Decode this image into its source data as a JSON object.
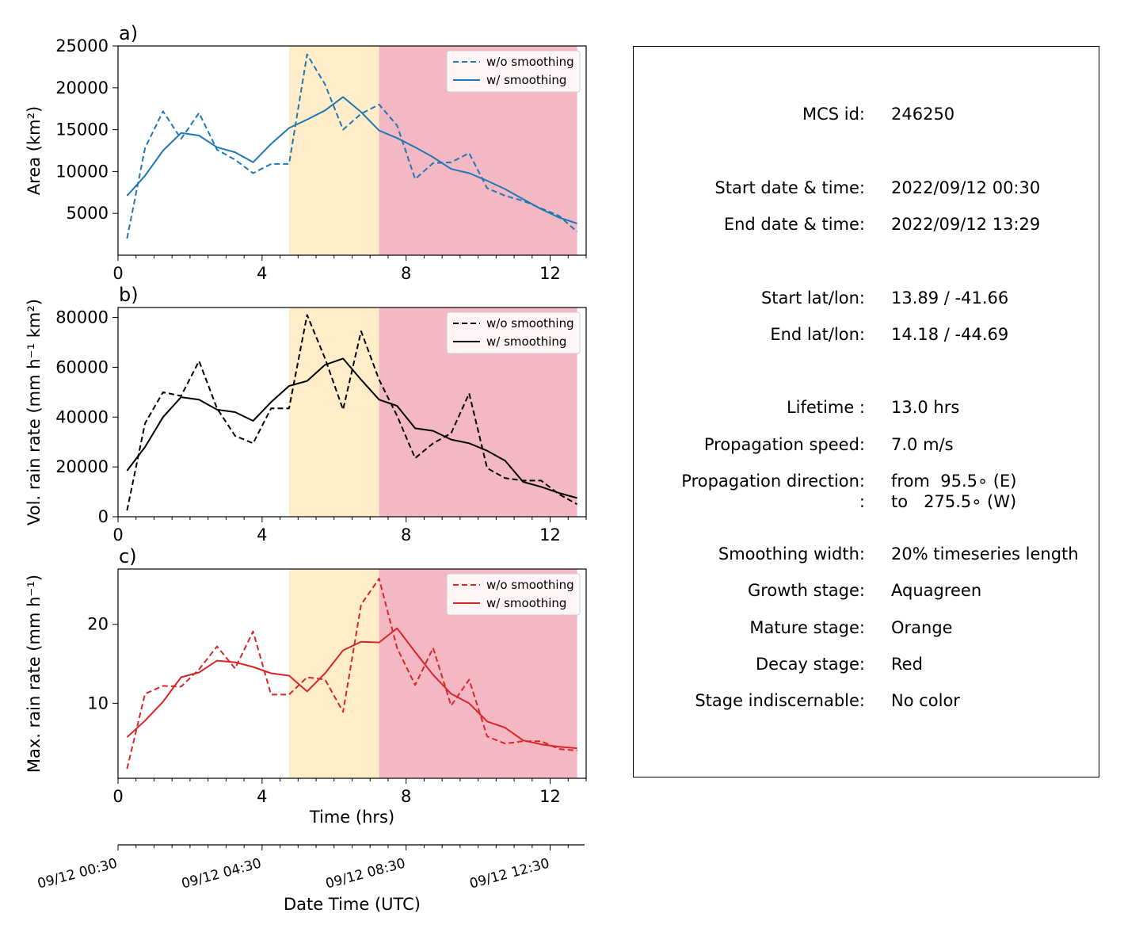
{
  "chart_data": [
    {
      "type": "line",
      "panel_label": "a)",
      "ylabel": "Area  (km²)",
      "xlim": [
        0,
        13
      ],
      "ylim": [
        0,
        25000
      ],
      "yticks": [
        5000,
        10000,
        15000,
        20000,
        25000
      ],
      "ytick_labels": [
        "5000",
        "10000",
        "15000",
        "20000",
        "25000"
      ],
      "xticks": [
        0,
        4,
        8,
        12
      ],
      "xtick_labels": [
        "0",
        "4",
        "8",
        "12"
      ],
      "color": "#1f77b4",
      "legend_position": "upper right",
      "x": [
        0.25,
        0.75,
        1.25,
        1.75,
        2.25,
        2.75,
        3.25,
        3.75,
        4.25,
        4.75,
        5.25,
        5.75,
        6.25,
        6.75,
        7.25,
        7.75,
        8.25,
        8.75,
        9.25,
        9.75,
        10.25,
        10.75,
        11.25,
        11.75,
        12.25,
        12.75
      ],
      "series": [
        {
          "name": "w/o smoothing",
          "style": "dashed",
          "values": [
            2000,
            12800,
            17200,
            13900,
            17000,
            12600,
            11400,
            9800,
            10900,
            10900,
            24000,
            20400,
            15000,
            16900,
            18000,
            15500,
            9100,
            11000,
            11100,
            12200,
            8000,
            7100,
            6500,
            5600,
            4700,
            2800
          ]
        },
        {
          "name": "w/ smoothing",
          "style": "solid",
          "values": [
            7100,
            9500,
            12500,
            14600,
            14300,
            12900,
            12300,
            11100,
            13300,
            15200,
            16200,
            17300,
            18900,
            17100,
            14900,
            14000,
            12900,
            11700,
            10300,
            9800,
            8900,
            7900,
            6700,
            5500,
            4500,
            3800
          ]
        }
      ]
    },
    {
      "type": "line",
      "panel_label": "b)",
      "ylabel": "Vol. rain rate (mm h⁻¹ km²)",
      "xlim": [
        0,
        13
      ],
      "ylim": [
        0,
        84000
      ],
      "yticks": [
        0,
        20000,
        40000,
        60000,
        80000
      ],
      "ytick_labels": [
        "0",
        "20000",
        "40000",
        "60000",
        "80000"
      ],
      "xticks": [
        0,
        4,
        8,
        12
      ],
      "xtick_labels": [
        "0",
        "4",
        "8",
        "12"
      ],
      "color": "#000000",
      "legend_position": "upper right",
      "x": [
        0.25,
        0.75,
        1.25,
        1.75,
        2.25,
        2.75,
        3.25,
        3.75,
        4.25,
        4.75,
        5.25,
        5.75,
        6.25,
        6.75,
        7.25,
        7.75,
        8.25,
        8.75,
        9.25,
        9.75,
        10.25,
        10.75,
        11.25,
        11.75,
        12.25,
        12.75
      ],
      "series": [
        {
          "name": "w/o smoothing",
          "style": "dashed",
          "values": [
            2500,
            37500,
            50000,
            48500,
            62500,
            43500,
            32500,
            29500,
            43500,
            43500,
            81000,
            63500,
            43000,
            74500,
            55000,
            40500,
            23500,
            29500,
            33500,
            49500,
            19500,
            15500,
            14500,
            14500,
            9000,
            5000
          ]
        },
        {
          "name": "w/ smoothing",
          "style": "solid",
          "values": [
            18500,
            28000,
            40000,
            48000,
            47000,
            43000,
            42000,
            38500,
            46000,
            52500,
            54500,
            61000,
            63500,
            55000,
            47000,
            44500,
            35500,
            34500,
            31000,
            29500,
            26500,
            22500,
            14000,
            12000,
            9500,
            7500
          ]
        }
      ]
    },
    {
      "type": "line",
      "panel_label": "c)",
      "ylabel": "Max. rain rate  (mm h⁻¹)",
      "xlabel": "Time (hrs)",
      "xlim": [
        0,
        13
      ],
      "ylim": [
        0.5,
        27
      ],
      "yticks": [
        10,
        20
      ],
      "ytick_labels": [
        "10",
        "20"
      ],
      "xticks": [
        0,
        4,
        8,
        12
      ],
      "xtick_labels": [
        "0",
        "4",
        "8",
        "12"
      ],
      "color": "#d62728",
      "legend_position": "upper right",
      "x": [
        0.25,
        0.75,
        1.25,
        1.75,
        2.25,
        2.75,
        3.25,
        3.75,
        4.25,
        4.75,
        5.25,
        5.75,
        6.25,
        6.75,
        7.25,
        7.75,
        8.25,
        8.75,
        9.25,
        9.75,
        10.25,
        10.75,
        11.25,
        11.75,
        12.25,
        12.75
      ],
      "series": [
        {
          "name": "w/o smoothing",
          "style": "dashed",
          "values": [
            1.7,
            11.2,
            12.2,
            12.1,
            14.3,
            17.2,
            14.4,
            19.1,
            11.1,
            11.1,
            13.3,
            13.0,
            8.9,
            22.5,
            25.8,
            17.0,
            12.3,
            17.0,
            9.7,
            13.0,
            5.8,
            4.9,
            5.2,
            5.2,
            4.2,
            4.0
          ]
        },
        {
          "name": "w/ smoothing",
          "style": "solid",
          "values": [
            5.7,
            7.8,
            10.2,
            13.3,
            13.9,
            15.4,
            15.2,
            14.6,
            13.8,
            13.5,
            11.5,
            13.8,
            16.7,
            17.8,
            17.7,
            19.5,
            16.5,
            13.6,
            11.2,
            10.0,
            7.7,
            6.9,
            5.3,
            4.8,
            4.5,
            4.3
          ]
        }
      ]
    }
  ],
  "stages": [
    {
      "name": "mature",
      "from_hr": 4.75,
      "to_hr": 7.25,
      "color": "#ffedca"
    },
    {
      "name": "decay",
      "from_hr": 7.25,
      "to_hr": 12.75,
      "color": "#f3b8c3"
    }
  ],
  "datetime_axis": {
    "label": "Date Time (UTC)",
    "tick_labels": [
      "09/12 00:30",
      "09/12 04:30",
      "09/12 08:30",
      "09/12 12:30"
    ],
    "tick_hrs": [
      0,
      4,
      8,
      12
    ]
  },
  "info_panel": {
    "rows": [
      {
        "key": "MCS id:",
        "value": "246250"
      },
      {
        "key": "Start date & time:",
        "value": "2022/09/12 00:30"
      },
      {
        "key": "End date & time:",
        "value": "2022/09/12 13:29"
      },
      {
        "key": "Start lat/lon:",
        "value": "13.89 / -41.66"
      },
      {
        "key": "End lat/lon:",
        "value": "14.18 / -44.69"
      },
      {
        "key": "Lifetime :",
        "value": "13.0 hrs"
      },
      {
        "key": "Propagation speed:",
        "value": "7.0 m/s"
      },
      {
        "key": "Propagation direction:",
        "value": "from  95.5∘ (E)"
      },
      {
        "key": ":",
        "value": "to   275.5∘ (W)"
      },
      {
        "key": "Smoothing width:",
        "value": "20% timeseries length"
      },
      {
        "key": "Growth stage:",
        "value": "Aquagreen"
      },
      {
        "key": "Mature stage:",
        "value": "Orange"
      },
      {
        "key": "Decay stage:",
        "value": "Red"
      },
      {
        "key": "Stage indiscernable:",
        "value": "No color"
      }
    ]
  }
}
